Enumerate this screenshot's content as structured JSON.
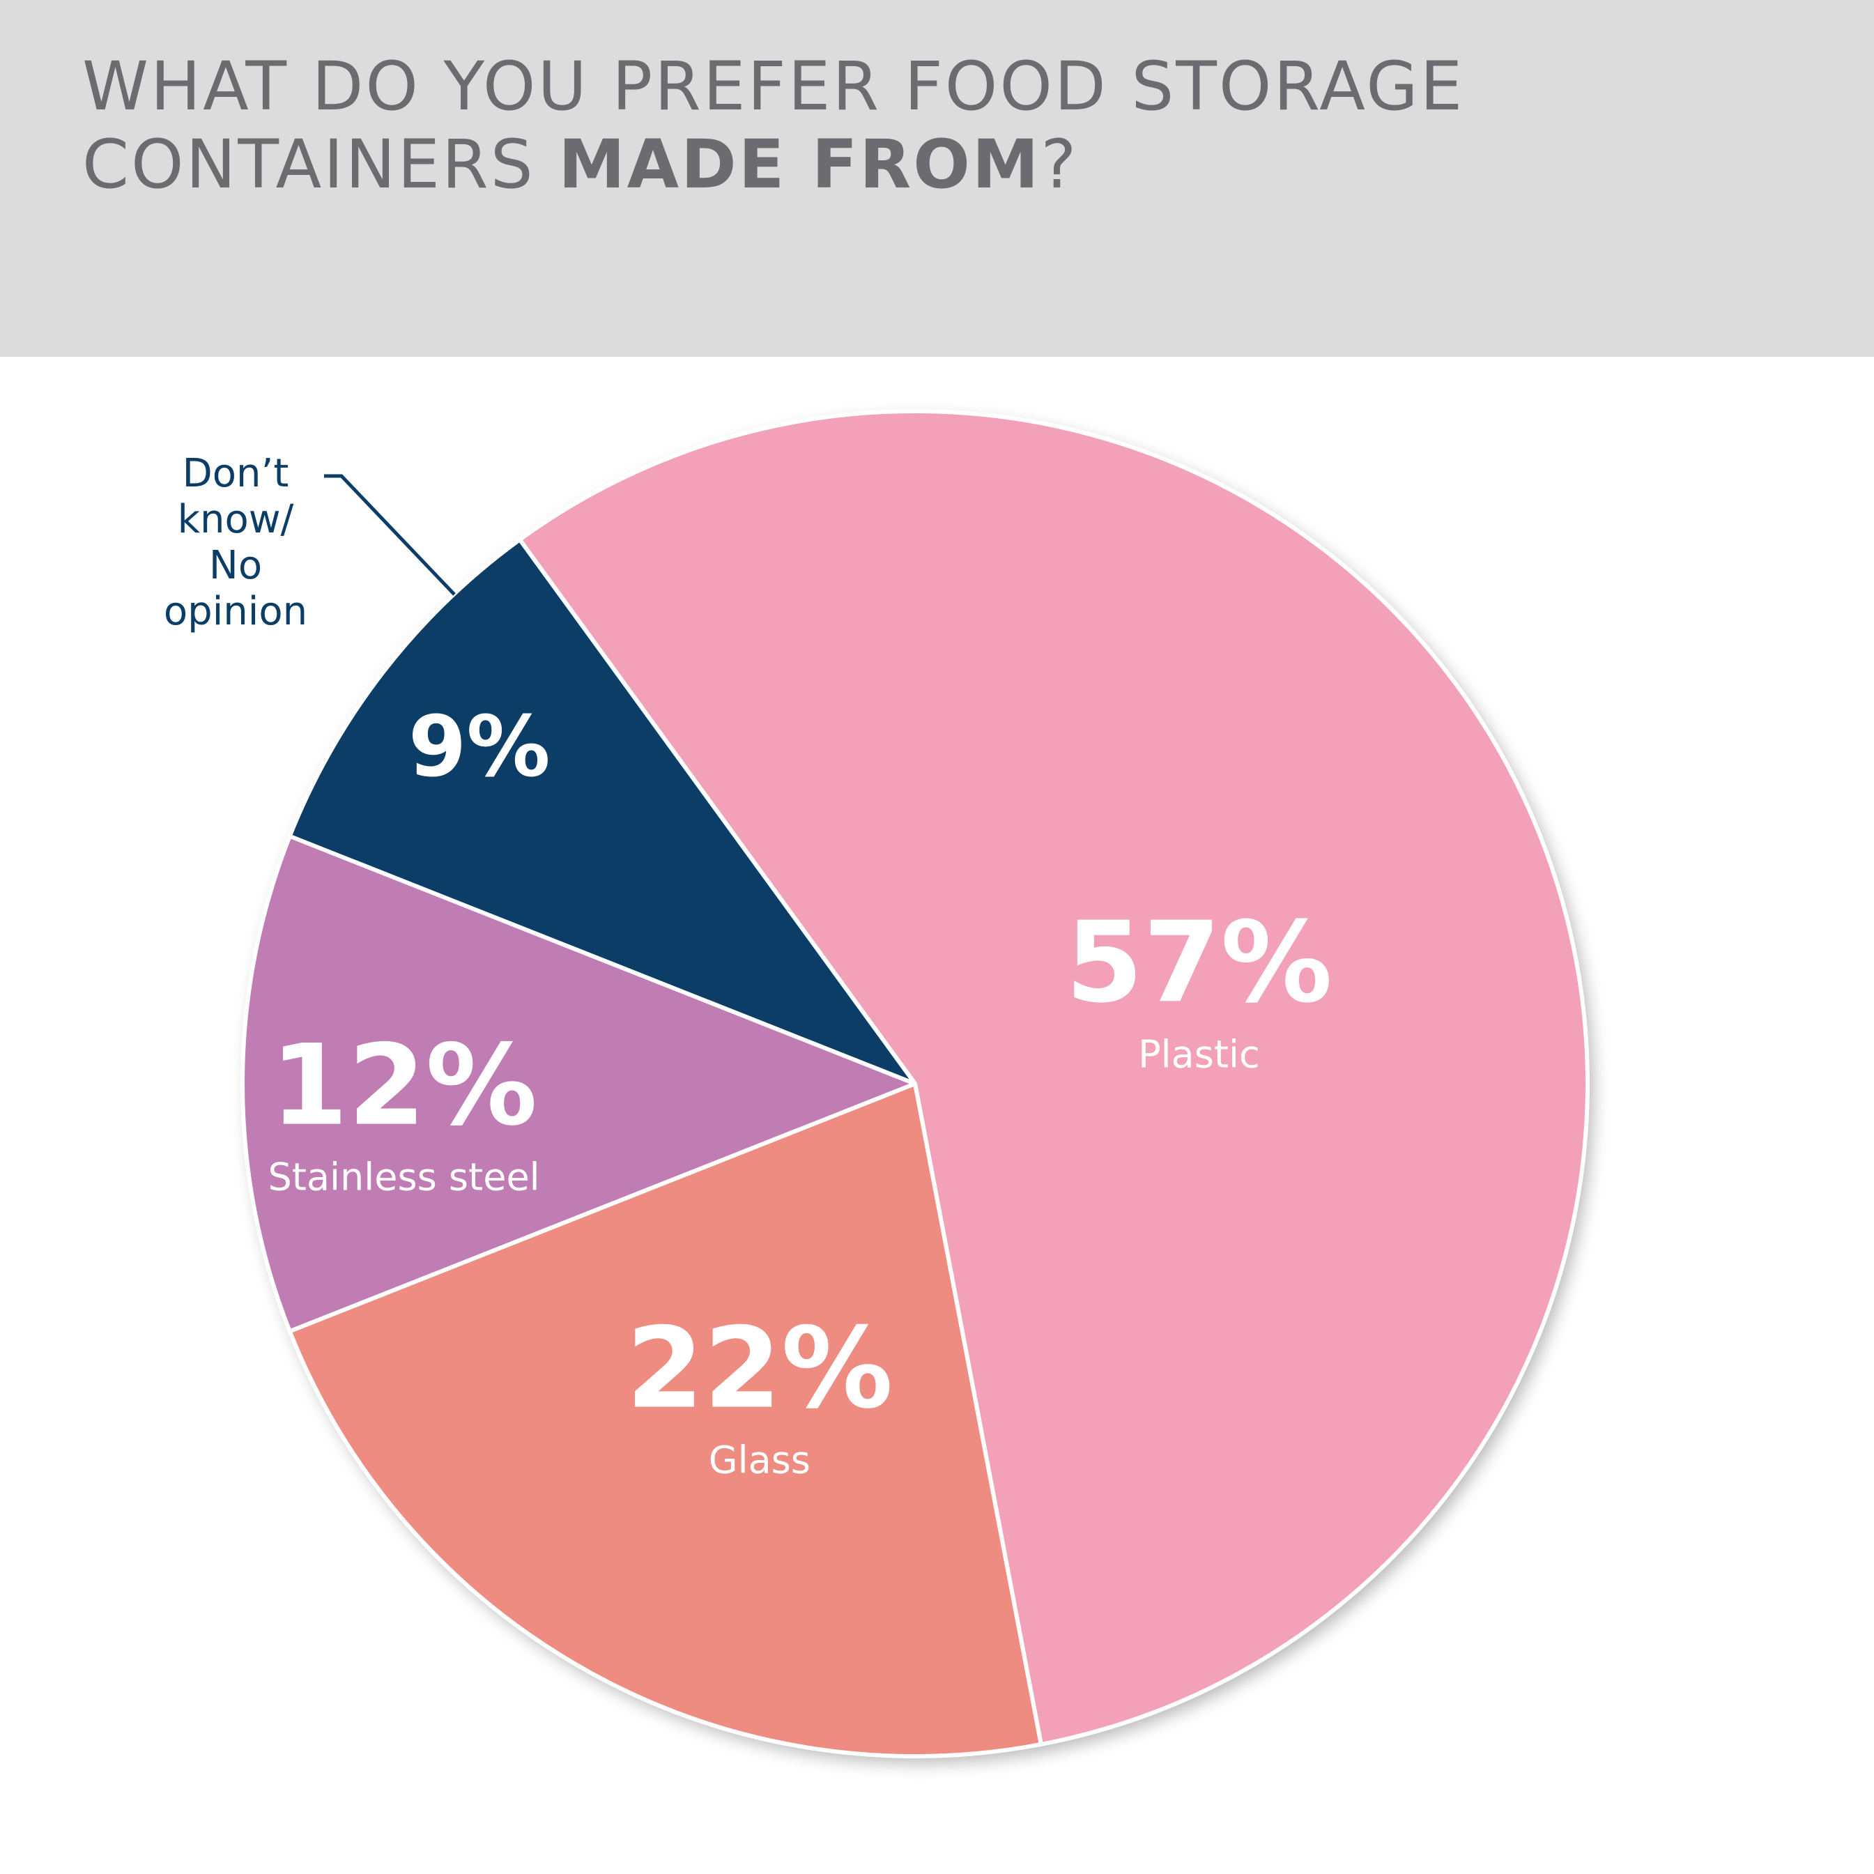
{
  "header": {
    "title_regular": "WHAT DO YOU PREFER FOOD STORAGE CONTAINERS ",
    "title_bold": "MADE FROM",
    "title_end": "?"
  },
  "colors": {
    "background": "#ffffff",
    "header_bg": "#dcdcdc",
    "title_text": "#6b6b70",
    "slice_plastic": "#f2a1b8",
    "slice_glass": "#ee8c82",
    "slice_stainless": "#bf7db4",
    "slice_dont_know": "#0c3d66",
    "slice_border": "#ffffff"
  },
  "chart_data": {
    "type": "pie",
    "title": "WHAT DO YOU PREFER FOOD STORAGE CONTAINERS MADE FROM?",
    "slices": [
      {
        "label": "Plastic",
        "value": 57,
        "display": "57%",
        "color": "#f2a1b8"
      },
      {
        "label": "Glass",
        "value": 22,
        "display": "22%",
        "color": "#ee8c82"
      },
      {
        "label": "Stainless steel",
        "value": 12,
        "display": "12%",
        "color": "#bf7db4"
      },
      {
        "label": "Don’t know/ No opinion",
        "label_lines": [
          "Don’t",
          "know/",
          "No",
          "opinion"
        ],
        "value": 9,
        "display": "9%",
        "color": "#0c3d66"
      }
    ],
    "legend": "none"
  }
}
